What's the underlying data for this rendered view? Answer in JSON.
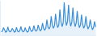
{
  "chart_data": {
    "type": "line",
    "color": "#3a8fd9",
    "tick_labels": false,
    "grid": false,
    "categories": [
      null,
      null,
      null,
      null,
      null,
      null,
      null,
      null,
      null,
      null,
      null,
      null,
      null,
      null,
      null,
      null,
      null,
      null,
      null,
      null,
      null,
      null,
      null,
      null,
      null,
      null,
      null,
      null,
      null,
      null,
      null,
      null,
      null,
      null,
      null,
      null,
      null,
      null,
      null,
      null,
      null,
      null,
      null,
      null,
      null,
      null,
      null,
      null,
      null,
      null,
      null,
      null,
      null,
      null,
      null,
      null,
      null,
      null,
      null,
      null,
      null,
      null,
      null,
      null,
      null,
      null,
      null,
      null,
      null,
      null,
      null,
      null,
      null,
      null,
      null,
      null,
      null,
      null,
      null,
      null,
      null,
      null,
      null,
      null,
      null,
      null,
      null,
      null
    ],
    "values": [
      10,
      12,
      22,
      14,
      9,
      11,
      24,
      13,
      10,
      12,
      20,
      15,
      9,
      11,
      23,
      12,
      10,
      13,
      25,
      14,
      10,
      12,
      22,
      13,
      9,
      12,
      26,
      15,
      11,
      14,
      28,
      16,
      12,
      15,
      30,
      18,
      13,
      17,
      35,
      20,
      15,
      20,
      45,
      25,
      18,
      24,
      55,
      30,
      20,
      28,
      62,
      35,
      22,
      30,
      75,
      40,
      25,
      35,
      95,
      50,
      28,
      40,
      88,
      45,
      26,
      38,
      80,
      42,
      25,
      35,
      70,
      38,
      22,
      30,
      60,
      32,
      20,
      28,
      55,
      30,
      18,
      25,
      45,
      28,
      16,
      22,
      40,
      24
    ],
    "ylim": [
      0,
      100
    ]
  }
}
